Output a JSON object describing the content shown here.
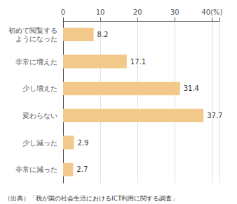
{
  "chart_data": {
    "type": "bar",
    "orientation": "horizontal",
    "categories": [
      "初めて閲覧する\nようになった",
      "非常に増えた",
      "少し増えた",
      "変わらない",
      "少し減った",
      "非常に減った"
    ],
    "values": [
      8.2,
      17.1,
      31.4,
      37.7,
      2.9,
      2.7
    ],
    "color": "#F2C98A",
    "xlim": [
      0,
      42
    ],
    "xticks": [
      0,
      10,
      20,
      30,
      {
        "value": 40,
        "label": "40(%)"
      }
    ],
    "grid": true,
    "data_labels": true,
    "annotations": [
      "（出典）「我が国の社会生活におけるICT利用に関する調査」"
    ]
  }
}
